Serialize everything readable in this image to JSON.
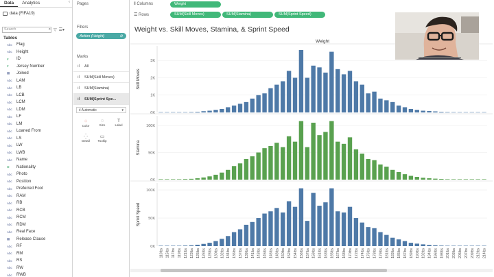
{
  "data_pane": {
    "tabs": [
      "Data",
      "Analytics"
    ],
    "datasource": "data (FIFA19)",
    "search_placeholder": "Search",
    "tables_label": "Tables",
    "fields": [
      {
        "type": "Abc",
        "name": "Flag"
      },
      {
        "type": "Abc",
        "name": "Height"
      },
      {
        "type": "#",
        "name": "ID"
      },
      {
        "type": "#",
        "name": "Jersey Number"
      },
      {
        "type": "date",
        "name": "Joined"
      },
      {
        "type": "Abc",
        "name": "LAM"
      },
      {
        "type": "Abc",
        "name": "LB"
      },
      {
        "type": "Abc",
        "name": "LCB"
      },
      {
        "type": "Abc",
        "name": "LCM"
      },
      {
        "type": "Abc",
        "name": "LDM"
      },
      {
        "type": "Abc",
        "name": "LF"
      },
      {
        "type": "Abc",
        "name": "LM"
      },
      {
        "type": "Abc",
        "name": "Loaned From"
      },
      {
        "type": "Abc",
        "name": "LS"
      },
      {
        "type": "Abc",
        "name": "LW"
      },
      {
        "type": "Abc",
        "name": "LWB"
      },
      {
        "type": "Abc",
        "name": "Name"
      },
      {
        "type": "geo",
        "name": "Nationality"
      },
      {
        "type": "Abc",
        "name": "Photo"
      },
      {
        "type": "Abc",
        "name": "Position"
      },
      {
        "type": "Abc",
        "name": "Preferred Foot"
      },
      {
        "type": "Abc",
        "name": "RAM"
      },
      {
        "type": "Abc",
        "name": "RB"
      },
      {
        "type": "Abc",
        "name": "RCB"
      },
      {
        "type": "Abc",
        "name": "RCM"
      },
      {
        "type": "Abc",
        "name": "RDM"
      },
      {
        "type": "Abc",
        "name": "Real Face"
      },
      {
        "type": "date",
        "name": "Release Clause"
      },
      {
        "type": "Abc",
        "name": "RF"
      },
      {
        "type": "Abc",
        "name": "RM"
      },
      {
        "type": "Abc",
        "name": "RS"
      },
      {
        "type": "Abc",
        "name": "RW"
      },
      {
        "type": "Abc",
        "name": "RWB"
      }
    ]
  },
  "pages_label": "Pages",
  "filters_label": "Filters",
  "filter_pill": "Action (Height)",
  "marks": {
    "label": "Marks",
    "rows": [
      "All",
      "SUM(Skill Moves)",
      "SUM(Stamina)",
      "SUM(Sprint Spe..."
    ],
    "mark_type": "Automatic",
    "buttons": [
      {
        "label": "Color",
        "icon": "color-icon"
      },
      {
        "label": "Size",
        "icon": "size-icon"
      },
      {
        "label": "Label",
        "icon": "label-icon"
      },
      {
        "label": "Detail",
        "icon": "detail-icon"
      },
      {
        "label": "Tooltip",
        "icon": "tooltip-icon"
      }
    ]
  },
  "shelves": {
    "columns_label": "Columns",
    "rows_label": "Rows",
    "columns": [
      "Weight"
    ],
    "rows": [
      "SUM(Skill Moves)",
      "SUM(Stamina)",
      "SUM(Sprint Speed)"
    ]
  },
  "view_title": "Weight vs. Skill Moves, Stamina, & Sprint Speed",
  "colors": {
    "blue": "#4e79a7",
    "green": "#59a14f",
    "pill_green": "#41b879",
    "filter_teal": "#4aa9a5"
  },
  "chart_data": {
    "type": "bar",
    "column_header": "Weight",
    "categories": [
      "110lbs",
      "115lbs",
      "117lbs",
      "119lbs",
      "121lbs",
      "123lbs",
      "125lbs",
      "126lbs",
      "128lbs",
      "130lbs",
      "132lbs",
      "134lbs",
      "136lbs",
      "137lbs",
      "139lbs",
      "141lbs",
      "143lbs",
      "145lbs",
      "146lbs",
      "148lbs",
      "150lbs",
      "152lbs",
      "154lbs",
      "156lbs",
      "157lbs",
      "159lbs",
      "161lbs",
      "163lbs",
      "165lbs",
      "167lbs",
      "168lbs",
      "170lbs",
      "172lbs",
      "174lbs",
      "176lbs",
      "178lbs",
      "179lbs",
      "181lbs",
      "183lbs",
      "185lbs",
      "187lbs",
      "189lbs",
      "190lbs",
      "192lbs",
      "194lbs",
      "196lbs",
      "198lbs",
      "201lbs",
      "203lbs",
      "205lbs",
      "207lbs",
      "209lbs",
      "212lbs",
      "214lbs"
    ],
    "series": [
      {
        "name": "Skill Moves",
        "axis_ticks": [
          "0K",
          "1K",
          "2K",
          "3K"
        ],
        "ymax": 3600,
        "values": [
          5,
          5,
          10,
          15,
          20,
          30,
          40,
          70,
          100,
          150,
          200,
          300,
          400,
          500,
          600,
          800,
          1000,
          1100,
          1400,
          1600,
          1800,
          2400,
          2000,
          3600,
          2000,
          2700,
          2600,
          2300,
          3500,
          2500,
          2200,
          2400,
          1800,
          1600,
          1100,
          1200,
          800,
          700,
          600,
          400,
          300,
          200,
          150,
          100,
          80,
          60,
          40,
          30,
          25,
          20,
          10,
          8,
          5,
          5
        ]
      },
      {
        "name": "Stamina",
        "axis_ticks": [
          "0K",
          "50K",
          "100K"
        ],
        "ymax": 110000,
        "values": [
          200,
          300,
          500,
          700,
          1000,
          1500,
          2500,
          4000,
          6000,
          9000,
          13000,
          18000,
          25000,
          30000,
          38000,
          43000,
          50000,
          58000,
          62000,
          68000,
          60000,
          80000,
          70000,
          108000,
          60000,
          105000,
          82000,
          88000,
          108000,
          70000,
          66000,
          78000,
          56000,
          48000,
          38000,
          36000,
          28000,
          24000,
          18000,
          14000,
          10000,
          7000,
          5000,
          3500,
          2500,
          1800,
          1200,
          800,
          600,
          400,
          300,
          200,
          150,
          100
        ]
      },
      {
        "name": "Sprint Speed",
        "axis_ticks": [
          "0K",
          "50K",
          "100K"
        ],
        "ymax": 105000,
        "values": [
          200,
          300,
          500,
          700,
          1000,
          1500,
          2500,
          4000,
          6000,
          9000,
          13000,
          18000,
          25000,
          30000,
          38000,
          43000,
          50000,
          58000,
          62000,
          68000,
          60000,
          80000,
          70000,
          103000,
          45000,
          95000,
          72000,
          78000,
          103000,
          62000,
          60000,
          70000,
          50000,
          42000,
          34000,
          32000,
          25000,
          20000,
          15000,
          12000,
          9000,
          6000,
          4500,
          3200,
          2200,
          1500,
          1000,
          700,
          500,
          350,
          250,
          180,
          120,
          80
        ]
      }
    ]
  }
}
